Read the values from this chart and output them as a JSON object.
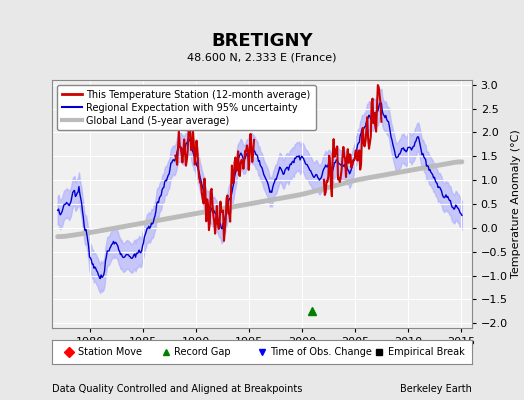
{
  "title": "BRETIGNY",
  "subtitle": "48.600 N, 2.333 E (France)",
  "xlabel_left": "Data Quality Controlled and Aligned at Breakpoints",
  "xlabel_right": "Berkeley Earth",
  "ylabel": "Temperature Anomaly (°C)",
  "xlim": [
    1976.5,
    2016
  ],
  "ylim": [
    -2.1,
    3.1
  ],
  "yticks": [
    -2,
    -1.5,
    -1,
    -0.5,
    0,
    0.5,
    1,
    1.5,
    2,
    2.5,
    3
  ],
  "xticks": [
    1980,
    1985,
    1990,
    1995,
    2000,
    2005,
    2010,
    2015
  ],
  "bg_color": "#e8e8e8",
  "plot_bg_color": "#f0f0f0",
  "grid_color": "#ffffff",
  "station_color": "#cc0000",
  "regional_color": "#0000cc",
  "regional_fill_color": "#aaaaff",
  "global_color": "#bbbbbb",
  "global_lw": 3.5,
  "station_lw": 1.5,
  "regional_lw": 1.2,
  "legend_marker_station_move": "red",
  "legend_marker_record_gap": "green",
  "legend_marker_obs_change": "blue",
  "legend_marker_empirical": "black"
}
